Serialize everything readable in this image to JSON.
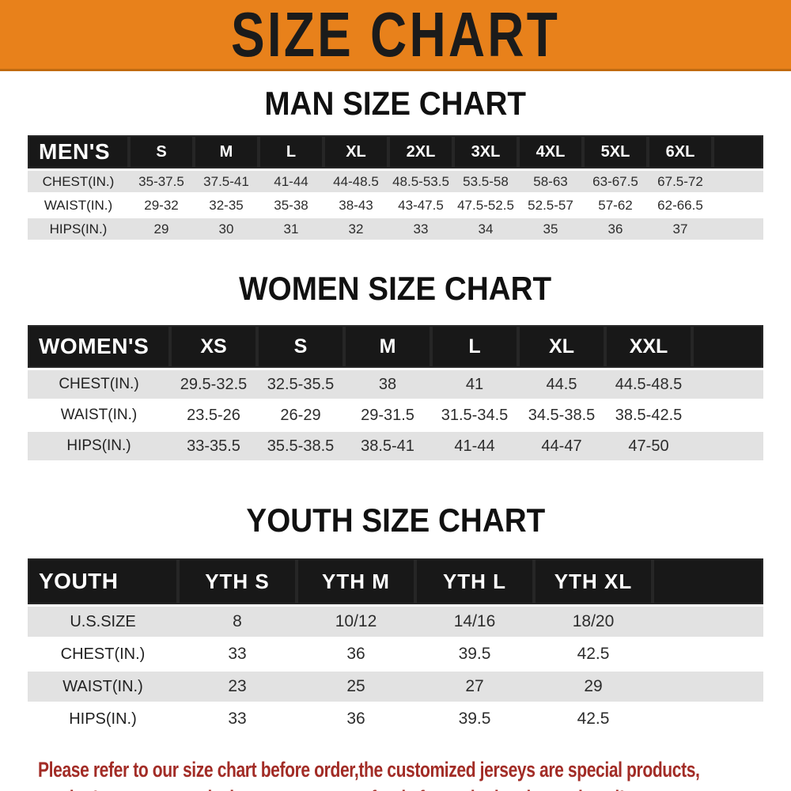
{
  "banner": {
    "title": "SIZE CHART"
  },
  "sections": [
    {
      "title": "MAN SIZE CHART",
      "group_label": "MEN'S",
      "sizes": [
        "S",
        "M",
        "L",
        "XL",
        "2XL",
        "3XL",
        "4XL",
        "5XL",
        "6XL"
      ],
      "rows": [
        {
          "label": "CHEST(IN.)",
          "values": [
            "35-37.5",
            "37.5-41",
            "41-44",
            "44-48.5",
            "48.5-53.5",
            "53.5-58",
            "58-63",
            "63-67.5",
            "67.5-72"
          ]
        },
        {
          "label": "WAIST(IN.)",
          "values": [
            "29-32",
            "32-35",
            "35-38",
            "38-43",
            "43-47.5",
            "47.5-52.5",
            "52.5-57",
            "57-62",
            "62-66.5"
          ]
        },
        {
          "label": "HIPS(IN.)",
          "values": [
            "29",
            "30",
            "31",
            "32",
            "33",
            "34",
            "35",
            "36",
            "37"
          ]
        }
      ]
    },
    {
      "title": "WOMEN SIZE CHART",
      "group_label": "WOMEN'S",
      "sizes": [
        "XS",
        "S",
        "M",
        "L",
        "XL",
        "XXL"
      ],
      "rows": [
        {
          "label": "CHEST(IN.)",
          "values": [
            "29.5-32.5",
            "32.5-35.5",
            "38",
            "41",
            "44.5",
            "44.5-48.5"
          ]
        },
        {
          "label": "WAIST(IN.)",
          "values": [
            "23.5-26",
            "26-29",
            "29-31.5",
            "31.5-34.5",
            "34.5-38.5",
            "38.5-42.5"
          ]
        },
        {
          "label": "HIPS(IN.)",
          "values": [
            "33-35.5",
            "35.5-38.5",
            "38.5-41",
            "41-44",
            "44-47",
            "47-50"
          ]
        }
      ]
    },
    {
      "title": "YOUTH SIZE CHART",
      "group_label": "YOUTH",
      "sizes": [
        "YTH S",
        "YTH M",
        "YTH L",
        "YTH XL"
      ],
      "rows": [
        {
          "label": "U.S.SIZE",
          "values": [
            "8",
            "10/12",
            "14/16",
            "18/20"
          ]
        },
        {
          "label": "CHEST(IN.)",
          "values": [
            "33",
            "36",
            "39.5",
            "42.5"
          ]
        },
        {
          "label": "WAIST(IN.)",
          "values": [
            "23",
            "25",
            "27",
            "29"
          ]
        },
        {
          "label": "HIPS(IN.)",
          "values": [
            "33",
            "36",
            "39.5",
            "42.5"
          ]
        }
      ]
    }
  ],
  "footnote": {
    "line1": "Please refer to our size chart before order,the customized jerseys are special products,",
    "line2": "we don't accept cancel, change, teturn or refund after order has been placed!"
  },
  "colors": {
    "banner_bg": "#E8811B",
    "banner_edge": "#C06A10",
    "header_bar": "#181818",
    "row_alt": "#E2E2E2",
    "footnote_red": "#A22C26"
  }
}
